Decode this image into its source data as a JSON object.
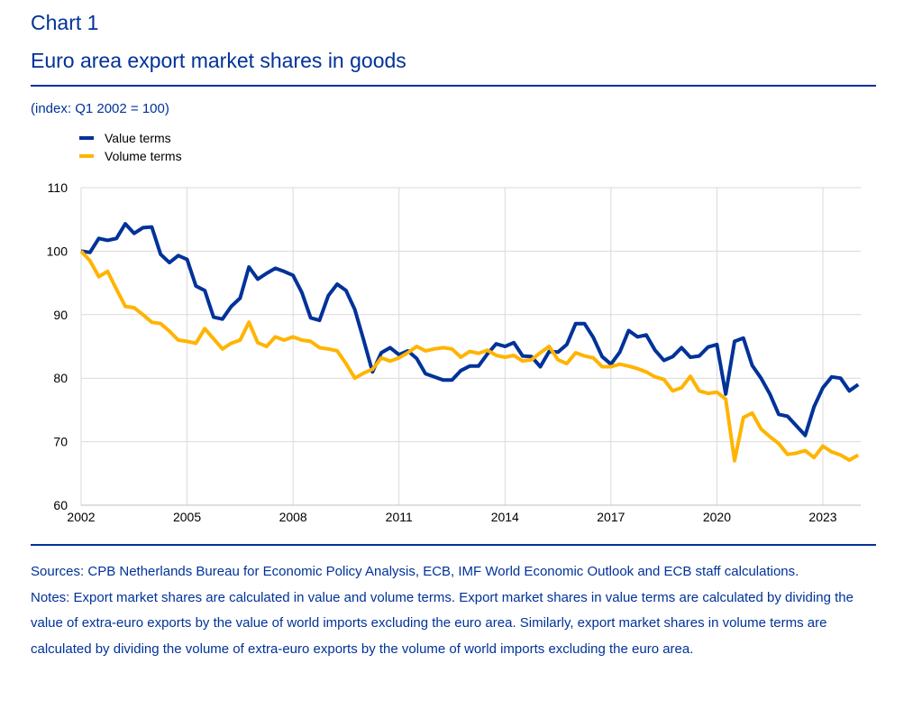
{
  "header": {
    "chart_number": "Chart 1",
    "title": "Euro area export market shares in goods",
    "subtitle": "(index: Q1 2002 = 100)"
  },
  "chart_data": {
    "type": "line",
    "title": "Euro area export market shares in goods",
    "ylabel": "(index: Q1 2002 = 100)",
    "xlabel": "",
    "frequency": "quarterly",
    "x_start": "Q1 2002",
    "xlim": [
      2002,
      2024
    ],
    "ylim": [
      60,
      110
    ],
    "yticks": [
      60,
      70,
      80,
      90,
      100,
      110
    ],
    "xticks": [
      2002,
      2005,
      2008,
      2011,
      2014,
      2017,
      2020,
      2023
    ],
    "grid": true,
    "legend_position": "top-left",
    "series": [
      {
        "name": "Value terms",
        "color": "#003299",
        "values": [
          100,
          99.8,
          102,
          101.7,
          102,
          104.3,
          102.8,
          103.7,
          103.8,
          99.5,
          98.2,
          99.3,
          98.7,
          94.5,
          93.8,
          89.6,
          89.3,
          91.3,
          92.6,
          97.5,
          95.6,
          96.5,
          97.3,
          96.8,
          96.2,
          93.5,
          89.5,
          89.1,
          93,
          94.8,
          93.8,
          90.8,
          86,
          81,
          84,
          84.8,
          83.7,
          84.3,
          83.1,
          80.7,
          80.2,
          79.7,
          79.7,
          81.2,
          81.9,
          81.9,
          83.8,
          85.4,
          85,
          85.6,
          83.5,
          83.4,
          81.8,
          84.2,
          84.1,
          85.3,
          88.6,
          88.6,
          86.4,
          83.4,
          82.2,
          84.1,
          87.5,
          86.5,
          86.8,
          84.4,
          82.8,
          83.4,
          84.8,
          83.3,
          83.5,
          84.9,
          85.3,
          77.5,
          85.8,
          86.3,
          82,
          80,
          77.5,
          74.3,
          74,
          72.5,
          71,
          75.5,
          78.5,
          80.2,
          80,
          78,
          79
        ]
      },
      {
        "name": "Volume terms",
        "color": "#FFB400",
        "values": [
          100,
          98.5,
          96,
          96.8,
          94,
          91.3,
          91.1,
          90,
          88.8,
          88.6,
          87.4,
          86,
          85.8,
          85.5,
          87.8,
          86.2,
          84.6,
          85.5,
          86,
          88.8,
          85.6,
          85,
          86.5,
          86,
          86.5,
          86,
          85.8,
          84.8,
          84.6,
          84.3,
          82.3,
          80,
          80.8,
          81.4,
          83.2,
          82.7,
          83.2,
          84,
          85,
          84.3,
          84.6,
          84.8,
          84.6,
          83.3,
          84.2,
          83.9,
          84.4,
          83.6,
          83.3,
          83.6,
          82.7,
          82.9,
          84,
          85,
          82.9,
          82.3,
          84,
          83.5,
          83.2,
          81.8,
          81.8,
          82.2,
          81.9,
          81.5,
          81,
          80.2,
          79.8,
          78,
          78.5,
          80.3,
          78,
          77.6,
          77.8,
          76.7,
          67,
          73.8,
          74.5,
          72,
          70.8,
          69.7,
          68,
          68.2,
          68.6,
          67.5,
          69.3,
          68.4,
          67.9,
          67.1,
          67.9
        ]
      }
    ]
  },
  "footer": {
    "sources": "Sources: CPB Netherlands Bureau for Economic Policy Analysis, ECB, IMF World Economic Outlook and ECB staff calculations.",
    "notes": "Notes: Export market shares are calculated in value and volume terms. Export market shares in value terms are calculated by dividing the value of extra-euro exports by the value of world imports excluding the euro area. Similarly, export market shares in volume terms are calculated by dividing the volume of extra-euro exports by the volume of world imports excluding the euro area."
  }
}
